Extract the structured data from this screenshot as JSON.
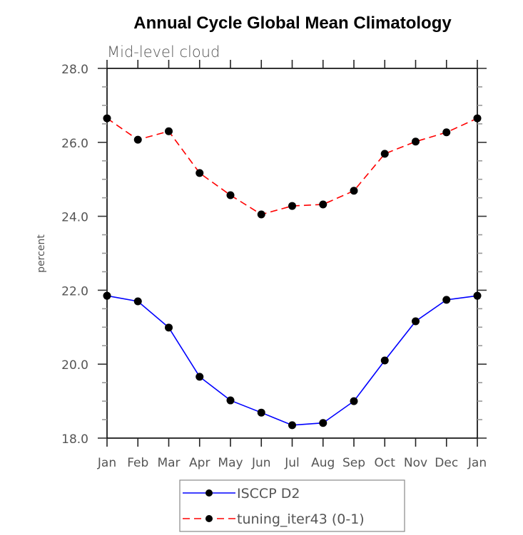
{
  "chart_data": {
    "type": "line",
    "title": "Annual Cycle Global Mean Climatology",
    "subtitle": "Mid-level cloud",
    "xlabel": "",
    "ylabel": "percent",
    "categories": [
      "Jan",
      "Feb",
      "Mar",
      "Apr",
      "May",
      "Jun",
      "Jul",
      "Aug",
      "Sep",
      "Oct",
      "Nov",
      "Dec",
      "Jan"
    ],
    "ylim": [
      18.0,
      28.0
    ],
    "yticks": [
      18.0,
      20.0,
      22.0,
      24.0,
      26.0,
      28.0
    ],
    "ytick_labels": [
      "18.0",
      "20.0",
      "22.0",
      "24.0",
      "26.0",
      "28.0"
    ],
    "y_minor_step": 0.5,
    "grid": false,
    "legend_position": "bottom-center",
    "series": [
      {
        "name": "ISCCP D2",
        "color": "#0000ff",
        "style": "solid",
        "marker": "filled-circle",
        "values": [
          21.85,
          21.7,
          20.99,
          19.66,
          19.02,
          18.69,
          18.35,
          18.41,
          19.0,
          20.1,
          21.16,
          21.74,
          21.85
        ]
      },
      {
        "name": "tuning_iter43 (0-1)",
        "color": "#ff0000",
        "style": "dashed",
        "marker": "filled-circle",
        "values": [
          26.65,
          26.07,
          26.3,
          25.17,
          24.57,
          24.05,
          24.28,
          24.32,
          24.69,
          25.69,
          26.02,
          26.27,
          26.65
        ]
      }
    ]
  }
}
